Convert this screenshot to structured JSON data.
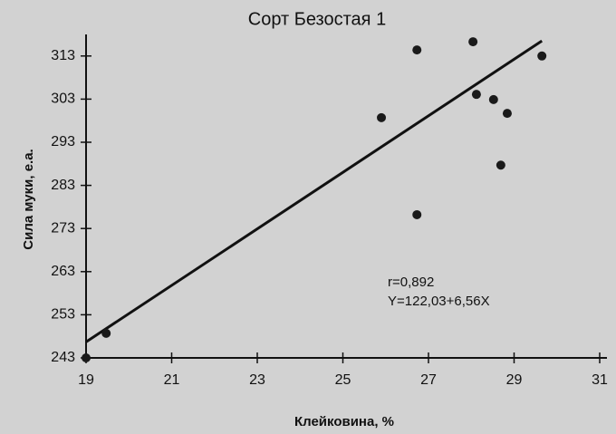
{
  "chart_data": {
    "type": "scatter",
    "title": "Сорт Безостая 1",
    "xlabel": "Клейковина, %",
    "ylabel": "Сила муки, е.а.",
    "x": [
      19,
      19.47,
      25.9,
      26.73,
      26.73,
      28.04,
      28.12,
      28.52,
      28.84,
      28.69,
      29.65
    ],
    "y": [
      243,
      248.7,
      298.7,
      314.4,
      276.2,
      316.3,
      304.1,
      302.9,
      299.7,
      287.7,
      313
    ],
    "color": "#1a1a1a",
    "trendline": {
      "x": [
        19,
        29.65
      ],
      "y": [
        246.7,
        316.5
      ]
    },
    "annotations": [
      "r=0,892",
      "Y=122,03+6,56X"
    ],
    "xlim": [
      19,
      31
    ],
    "xticks": [
      19,
      21,
      23,
      25,
      27,
      29,
      31
    ],
    "ylim": [
      243,
      318
    ],
    "yticks": [
      243,
      253,
      263,
      273,
      283,
      293,
      303,
      313
    ],
    "grid": false
  }
}
